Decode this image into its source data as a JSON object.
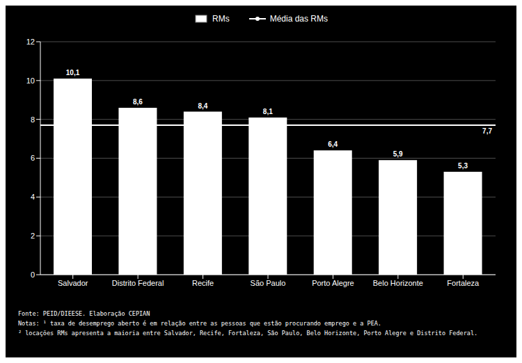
{
  "chart_data": {
    "type": "bar",
    "categories": [
      "Salvador",
      "Distrito Federal",
      "Recife",
      "São Paulo",
      "Porto Alegre",
      "Belo Horizonte",
      "Fortaleza"
    ],
    "series": [
      {
        "name": "RMs",
        "color": "#ffffff",
        "values": [
          10.1,
          8.6,
          8.4,
          8.1,
          6.4,
          5.9,
          5.3
        ],
        "value_labels": [
          "10,1",
          "8,6",
          "8,4",
          "8,1",
          "6,4",
          "5,9",
          "5,3"
        ]
      }
    ],
    "mean_line": {
      "name": "Média das RMs",
      "value": 7.7,
      "label": "7,7",
      "color": "#ffffff"
    },
    "ylim": [
      0,
      12
    ],
    "yticks": [
      0,
      2,
      4,
      6,
      8,
      10,
      12
    ],
    "grid": true,
    "legend": "top",
    "data_labels": true,
    "notes": [
      "Fonte: PEID/DIEESE. Elaboração CEPIAN",
      "Notas: ¹ taxa de desemprego aberto é em relação entre as pessoas que estão procurando emprego e a PEA.",
      "² locações RMs apresenta a maioria entre Salvador, Recife, Fortaleza, São Paulo, Belo Horizonte, Porto Alegre e Distrito Federal."
    ]
  }
}
